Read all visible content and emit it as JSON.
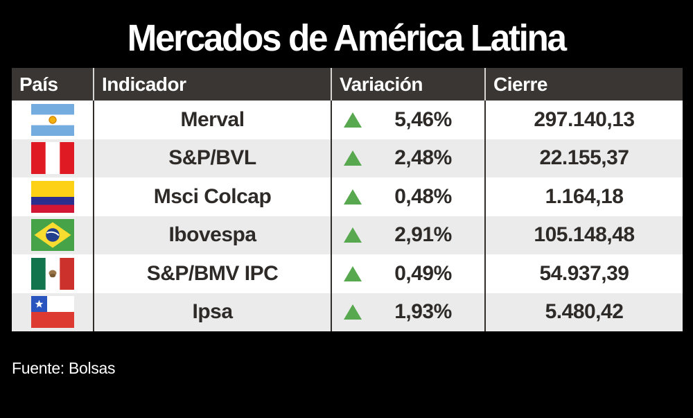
{
  "title": "Mercados de América Latina",
  "source": "Fuente: Bolsas",
  "table": {
    "headers": [
      "País",
      "Indicador",
      "Variación",
      "Cierre"
    ],
    "rows": [
      {
        "country": "argentina",
        "indicator": "Merval",
        "direction": "up",
        "variation": "5,46%",
        "close": "297.140,13"
      },
      {
        "country": "peru",
        "indicator": "S&P/BVL",
        "direction": "up",
        "variation": "2,48%",
        "close": "22.155,37"
      },
      {
        "country": "colombia",
        "indicator": "Msci Colcap",
        "direction": "up",
        "variation": "0,48%",
        "close": "1.164,18"
      },
      {
        "country": "brazil",
        "indicator": "Ibovespa",
        "direction": "up",
        "variation": "2,91%",
        "close": "105.148,48"
      },
      {
        "country": "mexico",
        "indicator": "S&P/BMV IPC",
        "direction": "up",
        "variation": "0,49%",
        "close": "54.937,39"
      },
      {
        "country": "chile",
        "indicator": "Ipsa",
        "direction": "up",
        "variation": "1,93%",
        "close": "5.480,42"
      }
    ]
  },
  "colors": {
    "background": "#000000",
    "header_bg": "#3a3633",
    "row_alt_bg": "#ebebeb",
    "text_dark": "#2d2a28",
    "up_green": "#57a84f"
  },
  "chart_data": {
    "type": "table",
    "title": "Mercados de América Latina",
    "columns": [
      "País",
      "Indicador",
      "Variación",
      "Cierre"
    ],
    "rows": [
      [
        "Argentina",
        "Merval",
        "+5,46%",
        "297.140,13"
      ],
      [
        "Perú",
        "S&P/BVL",
        "+2,48%",
        "22.155,37"
      ],
      [
        "Colombia",
        "Msci Colcap",
        "+0,48%",
        "1.164,18"
      ],
      [
        "Brasil",
        "Ibovespa",
        "+2,91%",
        "105.148,48"
      ],
      [
        "México",
        "S&P/BMV IPC",
        "+0,49%",
        "54.937,39"
      ],
      [
        "Chile",
        "Ipsa",
        "+1,93%",
        "5.480,42"
      ]
    ],
    "variation_numeric": [
      5.46,
      2.48,
      0.48,
      2.91,
      0.49,
      1.93
    ],
    "close_numeric": [
      297140.13,
      22155.37,
      1164.18,
      105148.48,
      54937.39,
      5480.42
    ],
    "source": "Fuente: Bolsas"
  }
}
